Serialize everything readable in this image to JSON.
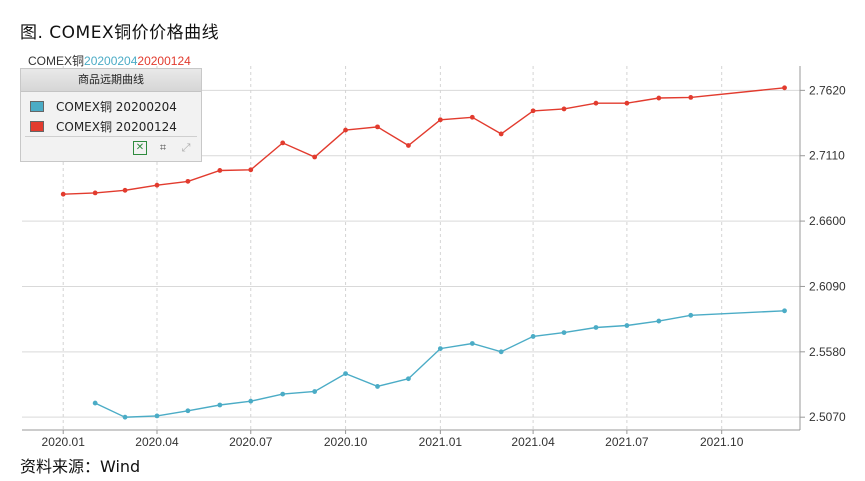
{
  "figure_title": "图. COMEX铜价价格曲线",
  "source": "资料来源：Wind",
  "series_header": {
    "prefix": "COMEX铜",
    "date1": "20200204",
    "date2": "20200124"
  },
  "legend": {
    "title": "商品远期曲线",
    "items": [
      {
        "label": "COMEX铜 20200204",
        "color": "#4bacc6"
      },
      {
        "label": "COMEX铜 20200124",
        "color": "#e23b2e"
      }
    ],
    "tools": [
      "excel-icon",
      "crop-icon",
      "expand-icon"
    ]
  },
  "chart_data": {
    "type": "line",
    "title": "",
    "xlabel": "",
    "ylabel": "",
    "x_ticks": [
      "2020.01",
      "2020.04",
      "2020.07",
      "2020.10",
      "2021.01",
      "2021.04",
      "2021.07",
      "2021.10"
    ],
    "y_ticks": [
      "2.5070",
      "2.5580",
      "2.6090",
      "2.6600",
      "2.7110",
      "2.7620"
    ],
    "ylim": [
      2.497,
      2.781
    ],
    "xlim": [
      "2019-11-22",
      "2021-12-16"
    ],
    "y_axis_position": "right",
    "grid": true,
    "series": [
      {
        "name": "COMEX铜 20200204",
        "color": "#4bacc6",
        "points": [
          {
            "x": "2020-02-01",
            "y": 2.518
          },
          {
            "x": "2020-03-01",
            "y": 2.507
          },
          {
            "x": "2020-04-01",
            "y": 2.508
          },
          {
            "x": "2020-05-01",
            "y": 2.512
          },
          {
            "x": "2020-06-01",
            "y": 2.5165
          },
          {
            "x": "2020-07-01",
            "y": 2.5195
          },
          {
            "x": "2020-08-01",
            "y": 2.525
          },
          {
            "x": "2020-09-01",
            "y": 2.527
          },
          {
            "x": "2020-10-01",
            "y": 2.541
          },
          {
            "x": "2020-11-01",
            "y": 2.531
          },
          {
            "x": "2020-12-01",
            "y": 2.537
          },
          {
            "x": "2021-01-01",
            "y": 2.5605
          },
          {
            "x": "2021-02-01",
            "y": 2.5645
          },
          {
            "x": "2021-03-01",
            "y": 2.558
          },
          {
            "x": "2021-04-01",
            "y": 2.57
          },
          {
            "x": "2021-05-01",
            "y": 2.573
          },
          {
            "x": "2021-06-01",
            "y": 2.577
          },
          {
            "x": "2021-07-01",
            "y": 2.5785
          },
          {
            "x": "2021-08-01",
            "y": 2.582
          },
          {
            "x": "2021-09-01",
            "y": 2.5865
          },
          {
            "x": "2021-12-01",
            "y": 2.59
          }
        ]
      },
      {
        "name": "COMEX铜 20200124",
        "color": "#e23b2e",
        "points": [
          {
            "x": "2020-01-01",
            "y": 2.681
          },
          {
            "x": "2020-02-01",
            "y": 2.682
          },
          {
            "x": "2020-03-01",
            "y": 2.684
          },
          {
            "x": "2020-04-01",
            "y": 2.688
          },
          {
            "x": "2020-05-01",
            "y": 2.691
          },
          {
            "x": "2020-06-01",
            "y": 2.6995
          },
          {
            "x": "2020-07-01",
            "y": 2.7
          },
          {
            "x": "2020-08-01",
            "y": 2.721
          },
          {
            "x": "2020-09-01",
            "y": 2.71
          },
          {
            "x": "2020-10-01",
            "y": 2.731
          },
          {
            "x": "2020-11-01",
            "y": 2.7335
          },
          {
            "x": "2020-12-01",
            "y": 2.719
          },
          {
            "x": "2021-01-01",
            "y": 2.739
          },
          {
            "x": "2021-02-01",
            "y": 2.741
          },
          {
            "x": "2021-03-01",
            "y": 2.728
          },
          {
            "x": "2021-04-01",
            "y": 2.746
          },
          {
            "x": "2021-05-01",
            "y": 2.7475
          },
          {
            "x": "2021-06-01",
            "y": 2.752
          },
          {
            "x": "2021-07-01",
            "y": 2.752
          },
          {
            "x": "2021-08-01",
            "y": 2.756
          },
          {
            "x": "2021-09-01",
            "y": 2.7565
          },
          {
            "x": "2021-12-01",
            "y": 2.764
          }
        ]
      }
    ]
  }
}
